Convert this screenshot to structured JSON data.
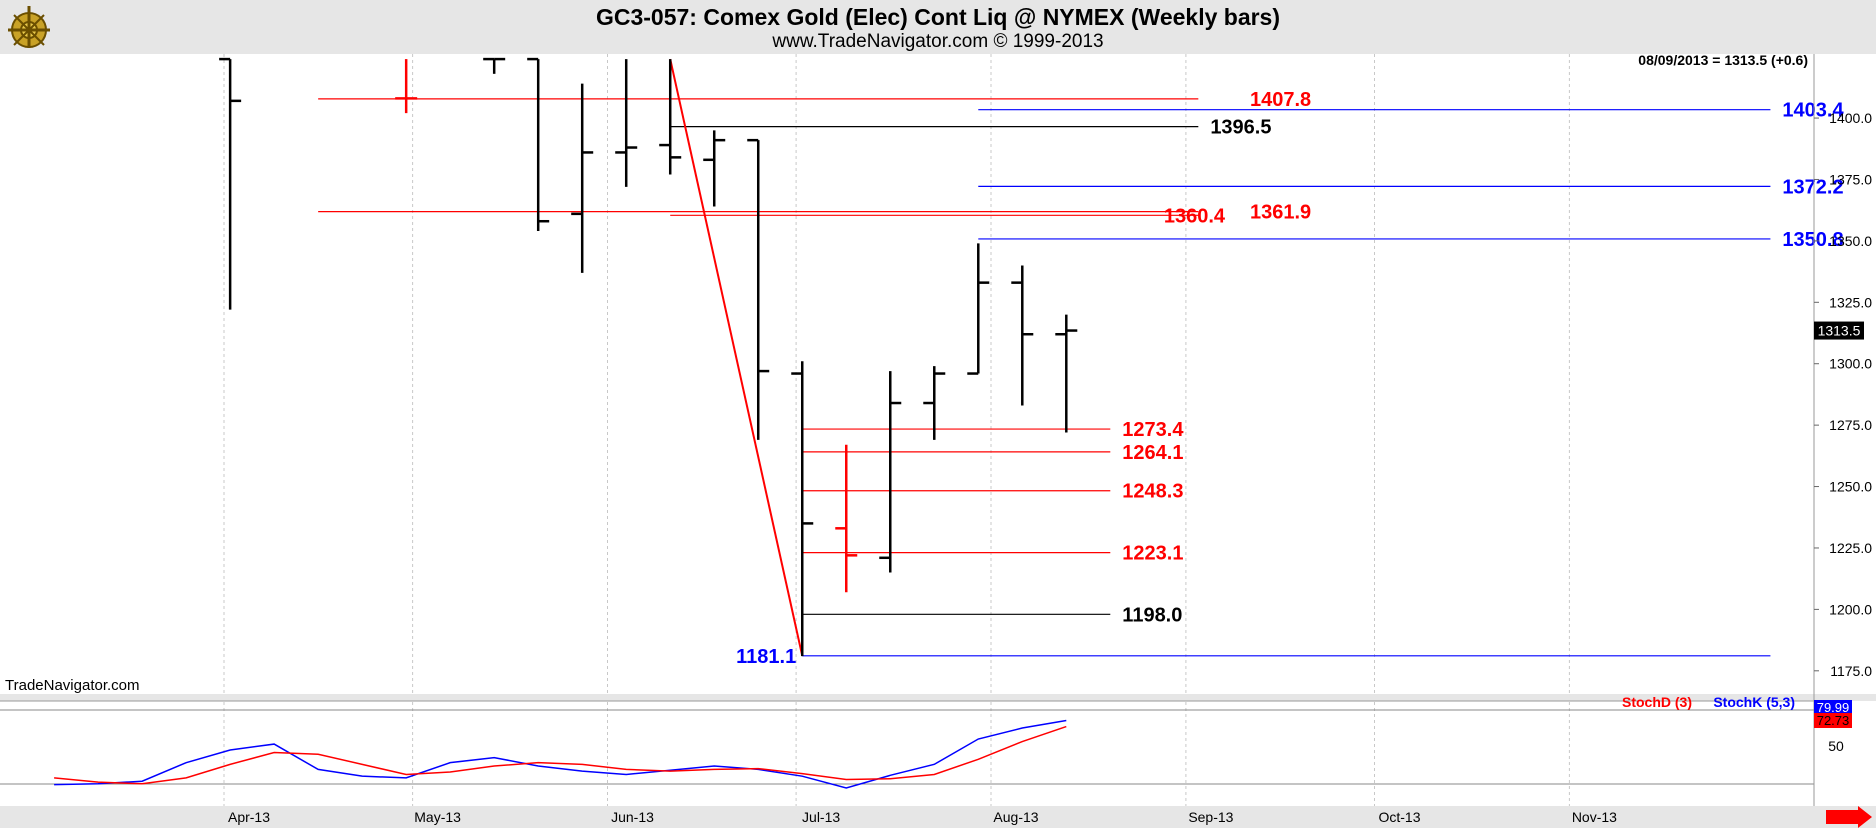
{
  "header": {
    "title": "GC3-057:  Comex Gold (Elec) Cont Liq @ NYMEX  (Weekly bars)",
    "subtitle": "www.TradeNavigator.com © 1999-2013"
  },
  "info_readout": "08/09/2013 = 1313.5 (+0.6)",
  "watermark": "TradeNavigator.com",
  "colors": {
    "bar": "#000000",
    "red": "#ff0000",
    "blue": "#0000ff",
    "grid": "#c8c8c8",
    "band": "#e6e6e6"
  },
  "chart_data": [
    {
      "type": "ohlc",
      "title": "GC3-057:  Comex Gold (Elec) Cont Liq @ NYMEX  (Weekly bars)",
      "x_ticks": [
        "Apr-13",
        "May-13",
        "Jun-13",
        "Jul-13",
        "Aug-13",
        "Sep-13",
        "Oct-13",
        "Nov-13"
      ],
      "y_ticks": [
        "1400.0",
        "1375.0",
        "1350.0",
        "1325.0",
        "1300.0",
        "1275.0",
        "1250.0",
        "1225.0",
        "1200.0",
        "1175.0"
      ],
      "ylim": [
        1168,
        1422
      ],
      "last_price_label": "1313.5",
      "bars": [
        {
          "date": "2013-03-29",
          "high": 1424,
          "low": 1322,
          "open": 1424,
          "close": 1407,
          "color": "black"
        },
        {
          "date": "2013-04-26",
          "high": 1424,
          "low": 1402,
          "open": 1408,
          "close": 1408,
          "color": "red"
        },
        {
          "date": "2013-05-10",
          "high": 1424,
          "low": 1418,
          "open": 1424,
          "close": 1424,
          "color": "black"
        },
        {
          "date": "2013-05-17",
          "high": 1424,
          "low": 1354,
          "open": 1424,
          "close": 1358,
          "color": "black"
        },
        {
          "date": "2013-05-24",
          "high": 1414,
          "low": 1337,
          "open": 1361,
          "close": 1386,
          "color": "black"
        },
        {
          "date": "2013-05-31",
          "high": 1424,
          "low": 1372,
          "open": 1386,
          "close": 1388,
          "color": "black"
        },
        {
          "date": "2013-06-07",
          "high": 1424,
          "low": 1377,
          "open": 1389,
          "close": 1384,
          "color": "black"
        },
        {
          "date": "2013-06-14",
          "high": 1395,
          "low": 1364,
          "open": 1383,
          "close": 1391,
          "color": "black"
        },
        {
          "date": "2013-06-21",
          "high": 1391,
          "low": 1269,
          "open": 1391,
          "close": 1297,
          "color": "black"
        },
        {
          "date": "2013-06-28",
          "high": 1301,
          "low": 1181,
          "open": 1296,
          "close": 1235,
          "color": "black"
        },
        {
          "date": "2013-07-05",
          "high": 1267,
          "low": 1207,
          "open": 1233,
          "close": 1222,
          "color": "red"
        },
        {
          "date": "2013-07-12",
          "high": 1297,
          "low": 1215,
          "open": 1221,
          "close": 1284,
          "color": "black"
        },
        {
          "date": "2013-07-19",
          "high": 1299,
          "low": 1269,
          "open": 1284,
          "close": 1296,
          "color": "black"
        },
        {
          "date": "2013-07-26",
          "high": 1349,
          "low": 1296,
          "open": 1296,
          "close": 1333,
          "color": "black"
        },
        {
          "date": "2013-08-02",
          "high": 1340,
          "low": 1283,
          "open": 1333,
          "close": 1312,
          "color": "black"
        },
        {
          "date": "2013-08-09",
          "high": 1320,
          "low": 1272,
          "open": 1312,
          "close": 1313.5,
          "color": "black"
        }
      ],
      "trendline": {
        "from": {
          "date": "2013-06-07",
          "price": 1424
        },
        "to": {
          "date": "2013-06-28",
          "price": 1181.1
        },
        "color": "red"
      },
      "levels": [
        {
          "label": "1407.8",
          "price": 1407.8,
          "color": "red",
          "from": "2013-04-12",
          "to": "2013-08-30"
        },
        {
          "label": "1403.4",
          "price": 1403.4,
          "color": "blue",
          "from": "2013-07-26",
          "to": "2013-11-29"
        },
        {
          "label": "1396.5",
          "price": 1396.5,
          "color": "black",
          "from": "2013-06-07",
          "to": "2013-08-30"
        },
        {
          "label": "1372.2",
          "price": 1372.2,
          "color": "blue",
          "from": "2013-07-26",
          "to": "2013-11-29"
        },
        {
          "label": "1361.9",
          "price": 1361.9,
          "color": "red",
          "from": "2013-04-12",
          "to": "2013-08-30"
        },
        {
          "label": "1360.4",
          "price": 1360.4,
          "color": "red",
          "from": "2013-06-07",
          "to": "2013-08-30"
        },
        {
          "label": "1350.8",
          "price": 1350.8,
          "color": "blue",
          "from": "2013-07-26",
          "to": "2013-11-29"
        },
        {
          "label": "1273.4",
          "price": 1273.4,
          "color": "red",
          "from": "2013-06-28",
          "to": "2013-08-16"
        },
        {
          "label": "1264.1",
          "price": 1264.1,
          "color": "red",
          "from": "2013-06-28",
          "to": "2013-08-16"
        },
        {
          "label": "1248.3",
          "price": 1248.3,
          "color": "red",
          "from": "2013-06-28",
          "to": "2013-08-16"
        },
        {
          "label": "1223.1",
          "price": 1223.1,
          "color": "red",
          "from": "2013-06-28",
          "to": "2013-08-16"
        },
        {
          "label": "1198.0",
          "price": 1198.0,
          "color": "black",
          "from": "2013-06-28",
          "to": "2013-08-16"
        },
        {
          "label": "1181.1",
          "price": 1181.1,
          "color": "blue",
          "from": "2013-06-28",
          "to": "2013-11-29"
        }
      ]
    },
    {
      "type": "line",
      "title": "",
      "legend": [
        {
          "name": "StochD (3)",
          "color": "red"
        },
        {
          "name": "StochK (5,3)",
          "color": "blue"
        }
      ],
      "y_ticks": [
        "50"
      ],
      "ylim": [
        0,
        90
      ],
      "last_value_labels": [
        "79.99",
        "72.73"
      ],
      "series": [
        {
          "name": "StochK (5,3)",
          "color": "blue",
          "x": [
            "2013-03-01",
            "2013-03-08",
            "2013-03-15",
            "2013-03-22",
            "2013-03-29",
            "2013-04-05",
            "2013-04-12",
            "2013-04-19",
            "2013-04-26",
            "2013-05-03",
            "2013-05-10",
            "2013-05-17",
            "2013-05-24",
            "2013-05-31",
            "2013-06-07",
            "2013-06-14",
            "2013-06-21",
            "2013-06-28",
            "2013-07-05",
            "2013-07-12",
            "2013-07-19",
            "2013-07-26",
            "2013-08-02",
            "2013-08-09"
          ],
          "values": [
            4,
            5,
            8,
            30,
            45,
            52,
            22,
            14,
            12,
            30,
            36,
            26,
            20,
            16,
            21,
            26,
            22,
            14,
            0,
            15,
            28,
            58,
            71,
            79.99
          ]
        },
        {
          "name": "StochD (3)",
          "color": "red",
          "x": [
            "2013-03-01",
            "2013-03-08",
            "2013-03-15",
            "2013-03-22",
            "2013-03-29",
            "2013-04-05",
            "2013-04-12",
            "2013-04-19",
            "2013-04-26",
            "2013-05-03",
            "2013-05-10",
            "2013-05-17",
            "2013-05-24",
            "2013-05-31",
            "2013-06-07",
            "2013-06-14",
            "2013-06-21",
            "2013-06-28",
            "2013-07-05",
            "2013-07-12",
            "2013-07-19",
            "2013-07-26",
            "2013-08-02",
            "2013-08-09"
          ],
          "values": [
            12,
            7,
            5,
            12,
            28,
            42,
            40,
            28,
            16,
            19,
            26,
            30,
            28,
            22,
            20,
            22,
            23,
            17,
            10,
            11,
            16,
            34,
            55,
            72.73
          ]
        }
      ]
    }
  ]
}
